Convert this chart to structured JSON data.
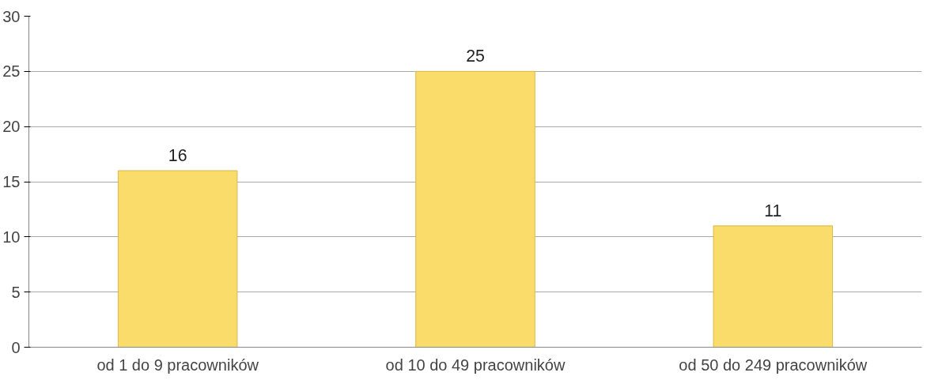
{
  "chart_data": {
    "type": "bar",
    "categories": [
      "od 1 do 9 pracowników",
      "od 10 do 49 pracowników",
      "od 50 do 249 pracowników"
    ],
    "values": [
      16,
      25,
      11
    ],
    "color": "#f9dc6a",
    "ylim": [
      0,
      30
    ],
    "yticks": [
      0,
      5,
      10,
      15,
      20,
      25,
      30
    ],
    "grid": "y",
    "data_labels": true
  }
}
